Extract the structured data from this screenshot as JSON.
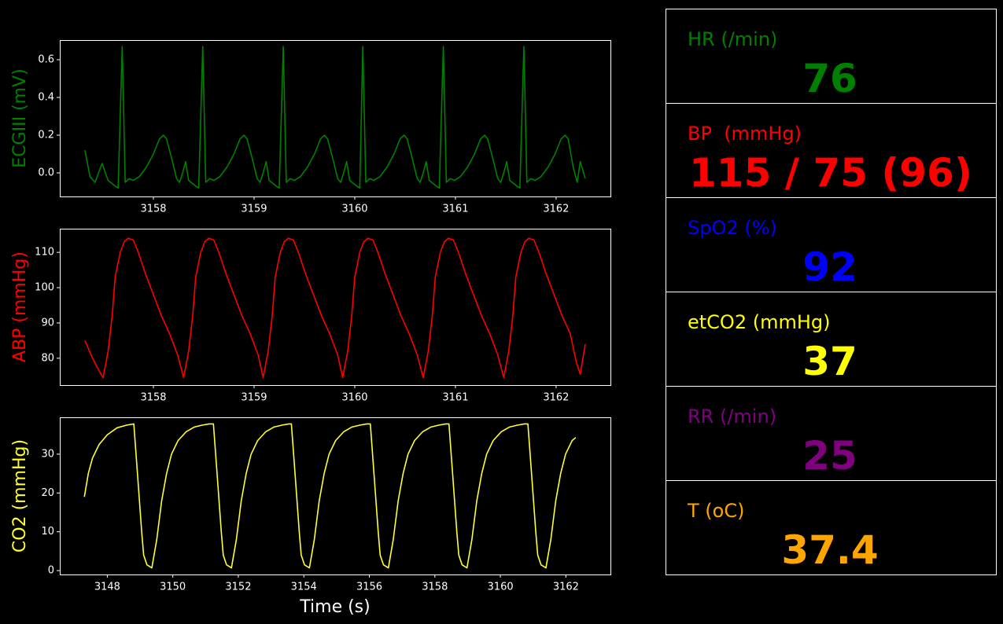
{
  "chart_data": [
    {
      "type": "line",
      "ylabel": "ECGIII (mV)",
      "color": "#008000",
      "xlim": [
        3157.07,
        3162.54
      ],
      "xticks": [
        3158,
        3159,
        3160,
        3161,
        3162
      ],
      "ylim": [
        -0.125,
        0.704
      ],
      "yticks": [
        {
          "value": 0,
          "label": "0.0"
        },
        0.2,
        0.4,
        0.6
      ],
      "x": [
        3157.32,
        3157.37,
        3157.42,
        3157.49,
        3157.55,
        3157.62,
        3157.65,
        3157.69,
        3157.72,
        3157.76,
        3157.8,
        3157.86,
        3157.93,
        3158,
        3158.06,
        3158.1,
        3158.13,
        3158.18,
        3158.23,
        3158.26,
        3158.29,
        3158.32,
        3158.35,
        3158.42,
        3158.45,
        3158.49,
        3158.52,
        3158.56,
        3158.6,
        3158.66,
        3158.73,
        3158.8,
        3158.86,
        3158.9,
        3158.93,
        3158.98,
        3159.03,
        3159.06,
        3159.09,
        3159.12,
        3159.15,
        3159.22,
        3159.25,
        3159.29,
        3159.32,
        3159.36,
        3159.4,
        3159.46,
        3159.53,
        3159.6,
        3159.66,
        3159.7,
        3159.73,
        3159.78,
        3159.83,
        3159.86,
        3159.89,
        3159.92,
        3159.95,
        3160.02,
        3160.05,
        3160.08,
        3160.11,
        3160.15,
        3160.19,
        3160.25,
        3160.32,
        3160.39,
        3160.45,
        3160.49,
        3160.52,
        3160.57,
        3160.62,
        3160.65,
        3160.68,
        3160.71,
        3160.74,
        3160.81,
        3160.84,
        3160.88,
        3160.91,
        3160.95,
        3160.99,
        3161.05,
        3161.12,
        3161.19,
        3161.25,
        3161.29,
        3161.32,
        3161.37,
        3161.42,
        3161.45,
        3161.48,
        3161.51,
        3161.54,
        3161.61,
        3161.64,
        3161.68,
        3161.71,
        3161.75,
        3161.79,
        3161.85,
        3161.92,
        3161.99,
        3162.05,
        3162.09,
        3162.12,
        3162.17,
        3162.21,
        3162.24,
        3162.29
      ],
      "values": [
        0.12,
        -0.02,
        -0.05,
        0.05,
        -0.04,
        -0.07,
        -0.08,
        0.67,
        -0.05,
        -0.03,
        -0.04,
        -0.02,
        0.03,
        0.1,
        0.18,
        0.2,
        0.18,
        0.08,
        -0.03,
        -0.05,
        0,
        0.06,
        -0.04,
        -0.07,
        -0.08,
        0.67,
        -0.05,
        -0.03,
        -0.04,
        -0.02,
        0.03,
        0.1,
        0.18,
        0.2,
        0.18,
        0.08,
        -0.03,
        -0.05,
        0,
        0.06,
        -0.04,
        -0.07,
        -0.08,
        0.67,
        -0.05,
        -0.03,
        -0.04,
        -0.02,
        0.03,
        0.1,
        0.18,
        0.2,
        0.18,
        0.08,
        -0.03,
        -0.05,
        0,
        0.06,
        -0.04,
        -0.07,
        -0.08,
        0.67,
        -0.05,
        -0.03,
        -0.04,
        -0.02,
        0.03,
        0.1,
        0.18,
        0.2,
        0.18,
        0.08,
        -0.03,
        -0.05,
        0,
        0.06,
        -0.04,
        -0.07,
        -0.08,
        0.67,
        -0.05,
        -0.03,
        -0.04,
        -0.02,
        0.03,
        0.1,
        0.18,
        0.2,
        0.18,
        0.08,
        -0.03,
        -0.05,
        0,
        0.06,
        -0.04,
        -0.07,
        -0.08,
        0.67,
        -0.05,
        -0.03,
        -0.04,
        -0.02,
        0.03,
        0.1,
        0.18,
        0.2,
        0.18,
        0.03,
        -0.05,
        0.06,
        -0.03
      ]
    },
    {
      "type": "line",
      "ylabel": "ABP (mmHg)",
      "color": "#ff0000",
      "xlim": [
        3157.07,
        3162.54
      ],
      "xticks": [
        3158,
        3159,
        3160,
        3161,
        3162
      ],
      "ylim": [
        72.4,
        116.7
      ],
      "yticks": [
        80,
        90,
        100,
        110
      ],
      "x": [
        3157.32,
        3157.38,
        3157.44,
        3157.5,
        3157.55,
        3157.59,
        3157.62,
        3157.67,
        3157.71,
        3157.75,
        3157.8,
        3157.85,
        3157.92,
        3158,
        3158.08,
        3158.16,
        3158.24,
        3158.3,
        3158.35,
        3158.39,
        3158.42,
        3158.47,
        3158.51,
        3158.55,
        3158.6,
        3158.65,
        3158.72,
        3158.8,
        3158.88,
        3158.96,
        3159.04,
        3159.09,
        3159.14,
        3159.18,
        3159.21,
        3159.26,
        3159.3,
        3159.34,
        3159.39,
        3159.44,
        3159.51,
        3159.59,
        3159.67,
        3159.75,
        3159.83,
        3159.88,
        3159.93,
        3159.97,
        3160,
        3160.05,
        3160.09,
        3160.13,
        3160.18,
        3160.23,
        3160.3,
        3160.38,
        3160.46,
        3160.54,
        3160.62,
        3160.68,
        3160.73,
        3160.77,
        3160.8,
        3160.85,
        3160.89,
        3160.93,
        3160.98,
        3161.03,
        3161.1,
        3161.18,
        3161.26,
        3161.34,
        3161.42,
        3161.48,
        3161.53,
        3161.57,
        3161.6,
        3161.65,
        3161.69,
        3161.73,
        3161.78,
        3161.83,
        3161.9,
        3161.98,
        3162.06,
        3162.14,
        3162.2,
        3162.24,
        3162.29
      ],
      "values": [
        85,
        81,
        77.5,
        74.5,
        82,
        92,
        103,
        110,
        113,
        114,
        113.5,
        110,
        104,
        98,
        92,
        87,
        81,
        74.5,
        82,
        92,
        103,
        110,
        113,
        114,
        113.5,
        110,
        104,
        98,
        92,
        87,
        81,
        74.5,
        82,
        92,
        103,
        110,
        113,
        114,
        113.5,
        110,
        104,
        98,
        92,
        87,
        81,
        74.5,
        82,
        92,
        103,
        110,
        113,
        114,
        113.5,
        110,
        104,
        98,
        92,
        87,
        81,
        74.5,
        82,
        92,
        103,
        110,
        113,
        114,
        113.5,
        110,
        104,
        98,
        92,
        87,
        81,
        74.5,
        82,
        92,
        103,
        110,
        113,
        114,
        113.5,
        110,
        104,
        98,
        92,
        87,
        79,
        75.5,
        84
      ]
    },
    {
      "type": "line",
      "ylabel": "CO2 (mmHg)",
      "xlabel": "Time (s)",
      "color": "#ffff33",
      "xlim": [
        3146.55,
        3163.36
      ],
      "xticks": [
        3148,
        3150,
        3152,
        3154,
        3156,
        3158,
        3160,
        3162
      ],
      "ylim": [
        -1,
        39.5
      ],
      "yticks": [
        0,
        10,
        20,
        30
      ],
      "x": [
        3147.3,
        3147.42,
        3147.55,
        3147.75,
        3148,
        3148.3,
        3148.6,
        3148.81,
        3148.93,
        3149.05,
        3149.11,
        3149.21,
        3149.36,
        3149.51,
        3149.66,
        3149.81,
        3149.96,
        3150.16,
        3150.41,
        3150.66,
        3150.91,
        3151.11,
        3151.24,
        3151.36,
        3151.48,
        3151.54,
        3151.64,
        3151.79,
        3151.94,
        3152.09,
        3152.24,
        3152.39,
        3152.59,
        3152.84,
        3153.09,
        3153.34,
        3153.54,
        3153.62,
        3153.74,
        3153.86,
        3153.92,
        3154.02,
        3154.17,
        3154.32,
        3154.47,
        3154.62,
        3154.77,
        3154.97,
        3155.22,
        3155.47,
        3155.72,
        3155.92,
        3156.03,
        3156.15,
        3156.27,
        3156.33,
        3156.43,
        3156.58,
        3156.73,
        3156.88,
        3157.03,
        3157.18,
        3157.38,
        3157.63,
        3157.88,
        3158.13,
        3158.33,
        3158.43,
        3158.55,
        3158.67,
        3158.73,
        3158.83,
        3158.98,
        3159.13,
        3159.28,
        3159.43,
        3159.58,
        3159.78,
        3160.03,
        3160.28,
        3160.53,
        3160.73,
        3160.84,
        3160.96,
        3161.08,
        3161.14,
        3161.24,
        3161.39,
        3161.54,
        3161.69,
        3161.84,
        3161.99,
        3162.19,
        3162.3
      ],
      "values": [
        19,
        25,
        29,
        32.5,
        35,
        36.8,
        37.5,
        37.8,
        24,
        10,
        4,
        1.5,
        0.7,
        8,
        18,
        25,
        30,
        33.5,
        35.8,
        37,
        37.5,
        37.8,
        37.8,
        24,
        10,
        4,
        1.5,
        0.7,
        8,
        18,
        25,
        30,
        33.5,
        35.8,
        37,
        37.5,
        37.8,
        37.8,
        24,
        10,
        4,
        1.5,
        0.7,
        8,
        18,
        25,
        30,
        33.5,
        35.8,
        37,
        37.5,
        37.8,
        37.8,
        24,
        10,
        4,
        1.5,
        0.7,
        8,
        18,
        25,
        30,
        33.5,
        35.8,
        37,
        37.5,
        37.8,
        37.8,
        24,
        10,
        4,
        1.5,
        0.7,
        8,
        18,
        25,
        30,
        33.5,
        35.8,
        37,
        37.5,
        37.8,
        37.8,
        24,
        10,
        4,
        1.5,
        0.7,
        8,
        18,
        25,
        30,
        33.5,
        34.3
      ]
    }
  ],
  "panel": [
    {
      "label": "HR (/min)",
      "value": 76
    },
    {
      "label": "BP  (mmHg)",
      "value": "115 / 75 (96)"
    },
    {
      "label": "SpO2 (%)",
      "value": 92
    },
    {
      "label": "etCO2 (mmHg)",
      "value": 37
    },
    {
      "label": "RR (/min)",
      "value": 25
    },
    {
      "label": "T (oC)",
      "value": 37.4
    }
  ]
}
